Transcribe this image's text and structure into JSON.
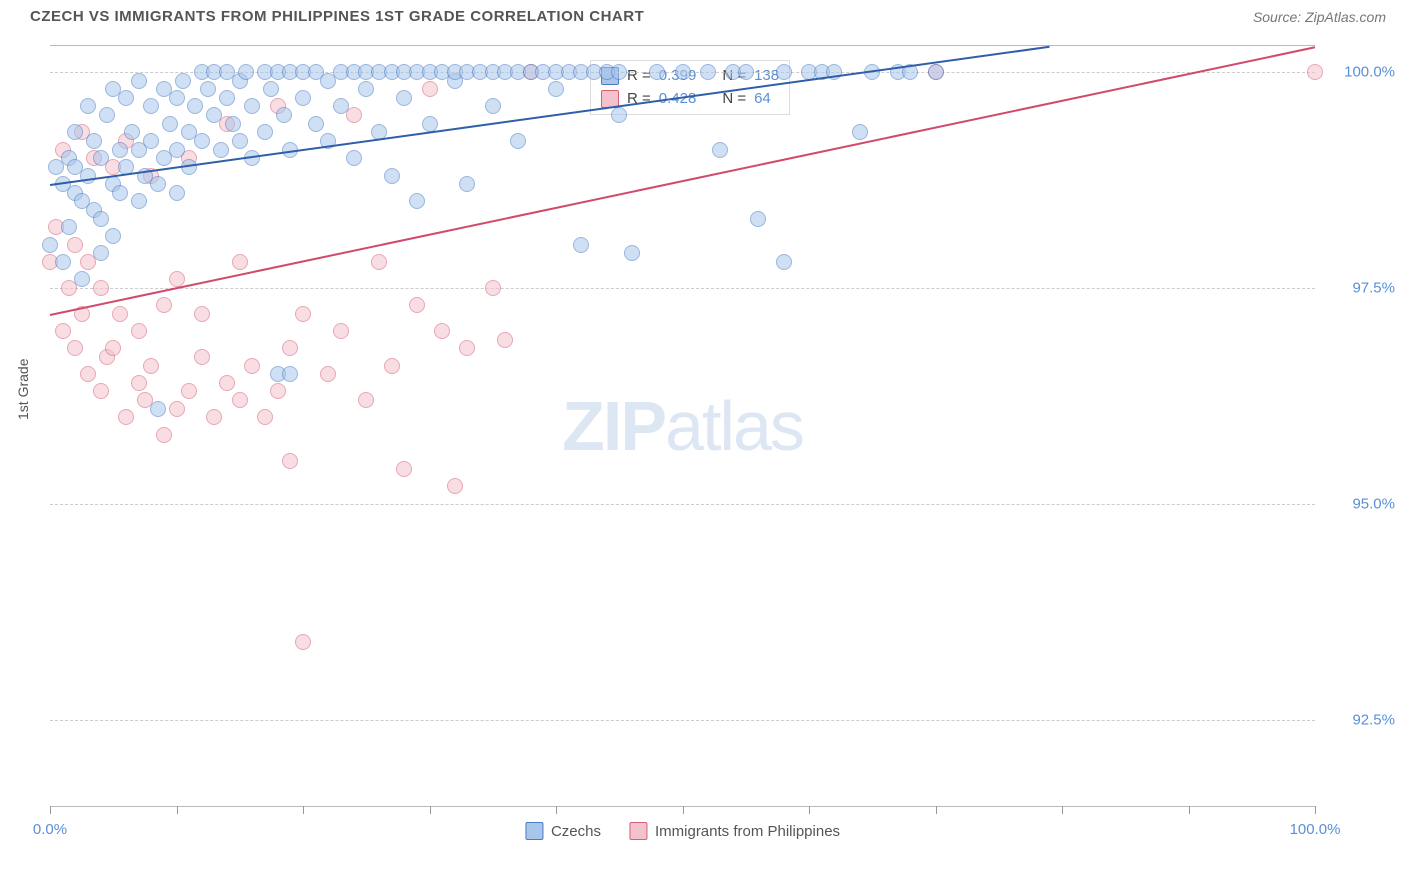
{
  "header": {
    "title": "CZECH VS IMMIGRANTS FROM PHILIPPINES 1ST GRADE CORRELATION CHART",
    "source": "Source: ZipAtlas.com"
  },
  "axis": {
    "y_title": "1st Grade",
    "xmin": 0,
    "xmax": 100,
    "ymin": 91.5,
    "ymax": 100.3,
    "y_gridlines": [
      92.5,
      95.0,
      97.5,
      100.0
    ],
    "y_labels": [
      "92.5%",
      "95.0%",
      "97.5%",
      "100.0%"
    ],
    "x_ticks": [
      0,
      10,
      20,
      30,
      40,
      50,
      60,
      70,
      80,
      90,
      100
    ],
    "x_labels_shown": {
      "0": "0.0%",
      "100": "100.0%"
    }
  },
  "watermark": {
    "part1": "ZIP",
    "part2": "atlas"
  },
  "series": {
    "czechs": {
      "label": "Czechs",
      "fill": "#a8c6ec",
      "stroke": "#4a7bc4",
      "line_color": "#2e5fa8",
      "R": "0.399",
      "N": "138",
      "trend": {
        "x1": 0,
        "y1": 98.7,
        "x2": 79,
        "y2": 100.3
      },
      "points": [
        [
          0,
          98.0
        ],
        [
          0.5,
          98.9
        ],
        [
          1,
          98.7
        ],
        [
          1,
          97.8
        ],
        [
          1.5,
          99.0
        ],
        [
          1.5,
          98.2
        ],
        [
          2,
          98.6
        ],
        [
          2,
          99.3
        ],
        [
          2,
          98.9
        ],
        [
          2.5,
          97.6
        ],
        [
          2.5,
          98.5
        ],
        [
          3,
          98.8
        ],
        [
          3,
          99.6
        ],
        [
          3.5,
          98.4
        ],
        [
          3.5,
          99.2
        ],
        [
          4,
          99.0
        ],
        [
          4,
          98.3
        ],
        [
          4,
          97.9
        ],
        [
          4.5,
          99.5
        ],
        [
          5,
          98.7
        ],
        [
          5,
          99.8
        ],
        [
          5,
          98.1
        ],
        [
          5.5,
          99.1
        ],
        [
          5.5,
          98.6
        ],
        [
          6,
          99.7
        ],
        [
          6,
          98.9
        ],
        [
          6.5,
          99.3
        ],
        [
          7,
          98.5
        ],
        [
          7,
          99.9
        ],
        [
          7,
          99.1
        ],
        [
          7.5,
          98.8
        ],
        [
          8,
          99.6
        ],
        [
          8,
          99.2
        ],
        [
          8.5,
          98.7
        ],
        [
          8.5,
          96.1
        ],
        [
          9,
          99.8
        ],
        [
          9,
          99.0
        ],
        [
          9.5,
          99.4
        ],
        [
          10,
          99.7
        ],
        [
          10,
          99.1
        ],
        [
          10,
          98.6
        ],
        [
          10.5,
          99.9
        ],
        [
          11,
          99.3
        ],
        [
          11,
          98.9
        ],
        [
          11.5,
          99.6
        ],
        [
          12,
          100.0
        ],
        [
          12,
          99.2
        ],
        [
          12.5,
          99.8
        ],
        [
          13,
          99.5
        ],
        [
          13,
          100.0
        ],
        [
          13.5,
          99.1
        ],
        [
          14,
          99.7
        ],
        [
          14,
          100.0
        ],
        [
          14.5,
          99.4
        ],
        [
          15,
          99.9
        ],
        [
          15,
          99.2
        ],
        [
          15.5,
          100.0
        ],
        [
          16,
          99.6
        ],
        [
          16,
          99.0
        ],
        [
          17,
          100.0
        ],
        [
          17,
          99.3
        ],
        [
          17.5,
          99.8
        ],
        [
          18,
          100.0
        ],
        [
          18,
          96.5
        ],
        [
          18.5,
          99.5
        ],
        [
          19,
          100.0
        ],
        [
          19,
          99.1
        ],
        [
          19,
          96.5
        ],
        [
          20,
          99.7
        ],
        [
          20,
          100.0
        ],
        [
          21,
          99.4
        ],
        [
          21,
          100.0
        ],
        [
          22,
          99.9
        ],
        [
          22,
          99.2
        ],
        [
          23,
          100.0
        ],
        [
          23,
          99.6
        ],
        [
          24,
          100.0
        ],
        [
          24,
          99.0
        ],
        [
          25,
          99.8
        ],
        [
          25,
          100.0
        ],
        [
          26,
          99.3
        ],
        [
          26,
          100.0
        ],
        [
          27,
          100.0
        ],
        [
          27,
          98.8
        ],
        [
          28,
          99.7
        ],
        [
          28,
          100.0
        ],
        [
          29,
          100.0
        ],
        [
          29,
          98.5
        ],
        [
          30,
          100.0
        ],
        [
          30,
          99.4
        ],
        [
          31,
          100.0
        ],
        [
          32,
          99.9
        ],
        [
          32,
          100.0
        ],
        [
          33,
          100.0
        ],
        [
          33,
          98.7
        ],
        [
          34,
          100.0
        ],
        [
          35,
          99.6
        ],
        [
          35,
          100.0
        ],
        [
          36,
          100.0
        ],
        [
          37,
          100.0
        ],
        [
          37,
          99.2
        ],
        [
          38,
          100.0
        ],
        [
          39,
          100.0
        ],
        [
          40,
          99.8
        ],
        [
          40,
          100.0
        ],
        [
          41,
          100.0
        ],
        [
          42,
          98.0
        ],
        [
          42,
          100.0
        ],
        [
          43,
          100.0
        ],
        [
          44,
          100.0
        ],
        [
          45,
          99.5
        ],
        [
          45,
          100.0
        ],
        [
          46,
          97.9
        ],
        [
          48,
          100.0
        ],
        [
          50,
          100.0
        ],
        [
          52,
          100.0
        ],
        [
          53,
          99.1
        ],
        [
          54,
          100.0
        ],
        [
          55,
          100.0
        ],
        [
          56,
          98.3
        ],
        [
          58,
          100.0
        ],
        [
          58,
          97.8
        ],
        [
          60,
          100.0
        ],
        [
          61,
          100.0
        ],
        [
          62,
          100.0
        ],
        [
          64,
          99.3
        ],
        [
          65,
          100.0
        ],
        [
          67,
          100.0
        ],
        [
          68,
          100.0
        ],
        [
          70,
          100.0
        ]
      ]
    },
    "philippines": {
      "label": "Immigrants from Philippines",
      "fill": "#f4c2cc",
      "stroke": "#d65f7a",
      "line_color": "#d14a6a",
      "R": "0.428",
      "N": "64",
      "trend": {
        "x1": 0,
        "y1": 97.2,
        "x2": 100,
        "y2": 100.3
      },
      "points": [
        [
          0,
          97.8
        ],
        [
          0.5,
          98.2
        ],
        [
          1,
          97.0
        ],
        [
          1,
          99.1
        ],
        [
          1.5,
          97.5
        ],
        [
          2,
          96.8
        ],
        [
          2,
          98.0
        ],
        [
          2.5,
          99.3
        ],
        [
          2.5,
          97.2
        ],
        [
          3,
          96.5
        ],
        [
          3,
          97.8
        ],
        [
          3.5,
          99.0
        ],
        [
          4,
          96.3
        ],
        [
          4,
          97.5
        ],
        [
          4.5,
          96.7
        ],
        [
          5,
          98.9
        ],
        [
          5,
          96.8
        ],
        [
          5.5,
          97.2
        ],
        [
          6,
          96.0
        ],
        [
          6,
          99.2
        ],
        [
          7,
          96.4
        ],
        [
          7,
          97.0
        ],
        [
          7.5,
          96.2
        ],
        [
          8,
          98.8
        ],
        [
          8,
          96.6
        ],
        [
          9,
          97.3
        ],
        [
          9,
          95.8
        ],
        [
          10,
          96.1
        ],
        [
          10,
          97.6
        ],
        [
          11,
          96.3
        ],
        [
          11,
          99.0
        ],
        [
          12,
          96.7
        ],
        [
          12,
          97.2
        ],
        [
          13,
          96.0
        ],
        [
          14,
          99.4
        ],
        [
          14,
          96.4
        ],
        [
          15,
          96.2
        ],
        [
          15,
          97.8
        ],
        [
          16,
          96.6
        ],
        [
          17,
          96.0
        ],
        [
          18,
          99.6
        ],
        [
          18,
          96.3
        ],
        [
          19,
          95.5
        ],
        [
          19,
          96.8
        ],
        [
          20,
          97.2
        ],
        [
          20,
          93.4
        ],
        [
          22,
          96.5
        ],
        [
          23,
          97.0
        ],
        [
          24,
          99.5
        ],
        [
          25,
          96.2
        ],
        [
          26,
          97.8
        ],
        [
          27,
          96.6
        ],
        [
          28,
          95.4
        ],
        [
          29,
          97.3
        ],
        [
          30,
          99.8
        ],
        [
          31,
          97.0
        ],
        [
          32,
          95.2
        ],
        [
          33,
          96.8
        ],
        [
          35,
          97.5
        ],
        [
          36,
          96.9
        ],
        [
          38,
          100.0
        ],
        [
          70,
          100.0
        ],
        [
          100,
          100.0
        ]
      ]
    }
  },
  "legend_stats": {
    "rows": [
      {
        "swatch_fill": "#a8c6ec",
        "swatch_stroke": "#4a7bc4",
        "r_label": "R =",
        "r_val": "0.399",
        "n_label": "N =",
        "n_val": "138"
      },
      {
        "swatch_fill": "#f4c2cc",
        "swatch_stroke": "#d65f7a",
        "r_label": "R =",
        "r_val": "0.428",
        "n_label": "N =",
        "n_val": " 64"
      }
    ]
  },
  "colors": {
    "background": "#ffffff",
    "grid": "#cccccc",
    "axis_text": "#5b8fd6",
    "title_text": "#555555"
  }
}
